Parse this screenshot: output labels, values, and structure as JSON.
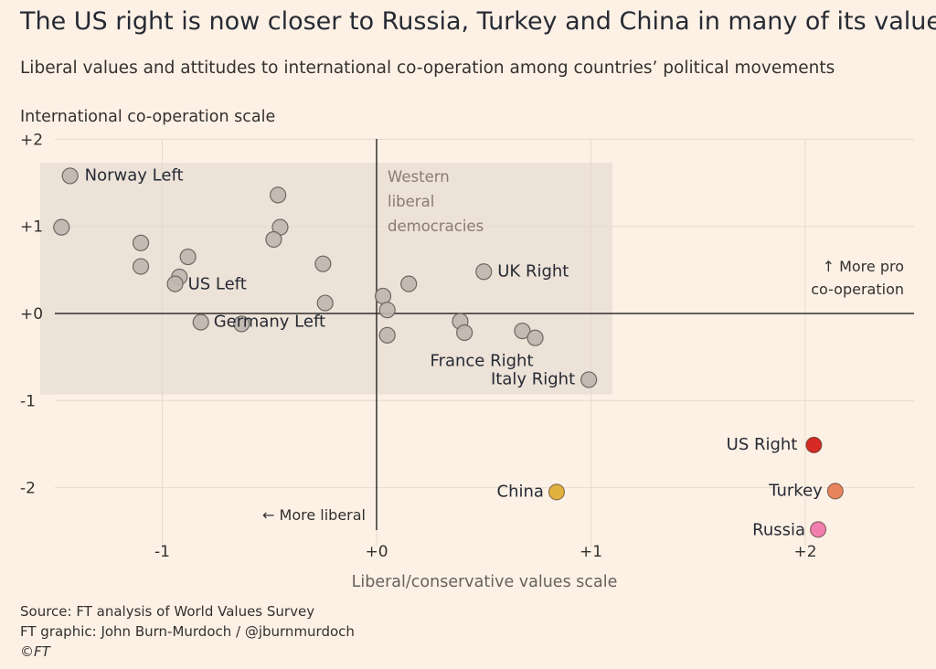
{
  "header": {
    "title": "The US right is now closer to Russia, Turkey and China in many of its values",
    "subtitle": "Liberal values and attitudes to international co-operation among countries’ political movements"
  },
  "footer": {
    "source": "Source: FT analysis of World Values Survey",
    "graphic": "FT graphic: John Burn-Murdoch / @jburnmurdoch",
    "copyright": "©FT"
  },
  "chart_data": {
    "type": "scatter",
    "xlabel": "Liberal/conservative values scale",
    "ylabel": "International co-operation scale",
    "xlim": [
      -1.6,
      2.5
    ],
    "ylim": [
      -2.55,
      2
    ],
    "x_ticks": [
      {
        "value": -1,
        "label": "-1"
      },
      {
        "value": 0,
        "label": "+0"
      },
      {
        "value": 1,
        "label": "+1"
      },
      {
        "value": 2,
        "label": "+2"
      }
    ],
    "y_ticks": [
      {
        "value": 2,
        "label": "+2"
      },
      {
        "value": 1,
        "label": "+1"
      },
      {
        "value": 0,
        "label": "+0"
      },
      {
        "value": -1,
        "label": "-1"
      },
      {
        "value": -2,
        "label": "-2"
      }
    ],
    "grid": true,
    "region": {
      "label_lines": [
        "Western",
        "liberal",
        "democracies"
      ],
      "x_range": [
        -1.57,
        1.1
      ],
      "y_range": [
        -0.93,
        1.73
      ]
    },
    "annotations": {
      "up": [
        "↑ More pro",
        "co-operation"
      ],
      "left": "← More liberal"
    },
    "colors": {
      "default_point": "#bfb7af",
      "region_fill": "#ece2d8",
      "axis_line": "#33302e"
    },
    "points": [
      {
        "x": -1.43,
        "y": 1.58,
        "label": "Norway Left"
      },
      {
        "x": -1.47,
        "y": 0.99
      },
      {
        "x": -1.1,
        "y": 0.81
      },
      {
        "x": -1.1,
        "y": 0.54
      },
      {
        "x": -0.46,
        "y": 1.36
      },
      {
        "x": -0.45,
        "y": 0.99
      },
      {
        "x": -0.48,
        "y": 0.85
      },
      {
        "x": -0.88,
        "y": 0.65
      },
      {
        "x": -0.92,
        "y": 0.42
      },
      {
        "x": -0.94,
        "y": 0.34,
        "label": "US Left"
      },
      {
        "x": -0.25,
        "y": 0.57
      },
      {
        "x": -0.24,
        "y": 0.12
      },
      {
        "x": -0.63,
        "y": -0.12
      },
      {
        "x": -0.82,
        "y": -0.1,
        "label": "Germany Left"
      },
      {
        "x": 0.03,
        "y": 0.2
      },
      {
        "x": 0.05,
        "y": 0.04
      },
      {
        "x": 0.05,
        "y": -0.25
      },
      {
        "x": 0.15,
        "y": 0.34
      },
      {
        "x": 0.5,
        "y": 0.48,
        "label": "UK Right"
      },
      {
        "x": 0.39,
        "y": -0.09
      },
      {
        "x": 0.41,
        "y": -0.22
      },
      {
        "x": 0.68,
        "y": -0.2
      },
      {
        "x": 0.74,
        "y": -0.28,
        "label": "France Right"
      },
      {
        "x": 0.99,
        "y": -0.76,
        "label": "Italy Right"
      },
      {
        "x": 2.04,
        "y": -1.51,
        "label": "US Right",
        "color": "#d62a24"
      },
      {
        "x": 0.84,
        "y": -2.05,
        "label": "China",
        "color": "#e3b13e"
      },
      {
        "x": 2.14,
        "y": -2.04,
        "label": "Turkey",
        "color": "#e9855d"
      },
      {
        "x": 2.06,
        "y": -2.48,
        "label": "Russia",
        "color": "#f07fae"
      }
    ]
  }
}
